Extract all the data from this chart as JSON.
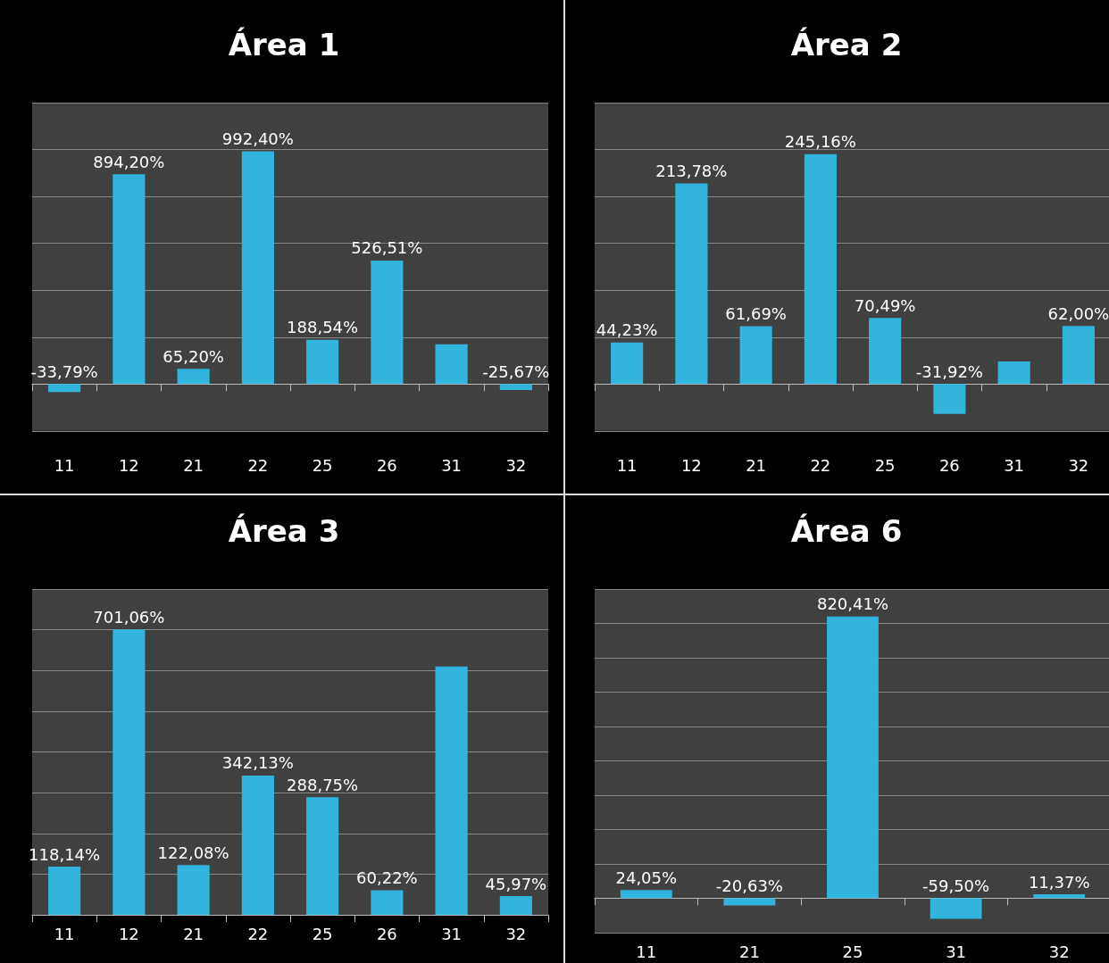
{
  "chart_data": [
    {
      "type": "bar",
      "title": "Área 1",
      "categories": [
        "11",
        "12",
        "21",
        "22",
        "25",
        "26",
        "31",
        "32"
      ],
      "color": "#31b5dc",
      "grid": "y",
      "tick_labels": "x",
      "values": [
        -33.79,
        894.2,
        65.2,
        992.4,
        188.54,
        526.51,
        170,
        -25.67
      ],
      "value_labels": [
        "-33,79%",
        "894,20%",
        "65,20%",
        "992,40%",
        "188,54%",
        "526,51%",
        null,
        "-25,67%"
      ],
      "ylim": [
        -200,
        1200
      ],
      "yticks": [
        {
          "value": -200,
          "label": null
        },
        {
          "value": 0,
          "label": null
        },
        {
          "value": 200,
          "label": null
        },
        {
          "value": 400,
          "label": null
        },
        {
          "value": 600,
          "label": null
        },
        {
          "value": 800,
          "label": null
        },
        {
          "value": 1000,
          "label": null
        },
        {
          "value": 1200,
          "label": null
        }
      ]
    },
    {
      "type": "bar",
      "title": "Área 2",
      "categories": [
        "11",
        "12",
        "21",
        "22",
        "25",
        "26",
        "31",
        "32"
      ],
      "color": "#31b5dc",
      "grid": "y",
      "tick_labels": "x",
      "values": [
        44.23,
        213.78,
        61.69,
        245.16,
        70.49,
        -31.92,
        24,
        62.0
      ],
      "value_labels": [
        "44,23%",
        "213,78%",
        "61,69%",
        "245,16%",
        "70,49%",
        "-31,92%",
        null,
        "62,00%"
      ],
      "ylim": [
        -50,
        300
      ],
      "yticks": [
        {
          "value": -50,
          "label": null
        },
        {
          "value": 0,
          "label": null
        },
        {
          "value": 50,
          "label": null
        },
        {
          "value": 100,
          "label": null
        },
        {
          "value": 150,
          "label": null
        },
        {
          "value": 200,
          "label": null
        },
        {
          "value": 250,
          "label": null
        },
        {
          "value": 300,
          "label": null
        }
      ]
    },
    {
      "type": "bar",
      "title": "Área 3",
      "categories": [
        "11",
        "12",
        "21",
        "22",
        "25",
        "26",
        "31",
        "32"
      ],
      "color": "#31b5dc",
      "grid": "y",
      "tick_labels": "x",
      "values": [
        118.14,
        701.06,
        122.08,
        342.13,
        288.75,
        60.22,
        610,
        45.97
      ],
      "value_labels": [
        "118,14%",
        "701,06%",
        "122,08%",
        "342,13%",
        "288,75%",
        "60,22%",
        null,
        "45,97%"
      ],
      "ylim": [
        0,
        800
      ],
      "yticks": [
        {
          "value": 0,
          "label": null
        },
        {
          "value": 100,
          "label": null
        },
        {
          "value": 200,
          "label": null
        },
        {
          "value": 300,
          "label": null
        },
        {
          "value": 400,
          "label": null
        },
        {
          "value": 500,
          "label": null
        },
        {
          "value": 600,
          "label": null
        },
        {
          "value": 700,
          "label": null
        },
        {
          "value": 800,
          "label": null
        }
      ]
    },
    {
      "type": "bar",
      "title": "Área 6",
      "categories": [
        "11",
        "21",
        "25",
        "31",
        "32"
      ],
      "color": "#31b5dc",
      "grid": "y",
      "tick_labels": "x",
      "values": [
        24.05,
        -20.63,
        820.41,
        -59.5,
        11.37
      ],
      "value_labels": [
        "24,05%",
        "-20,63%",
        "820,41%",
        "-59,50%",
        "11,37%"
      ],
      "ylim": [
        -100,
        900
      ],
      "yticks": [
        {
          "value": -100,
          "label": null
        },
        {
          "value": 0,
          "label": null
        },
        {
          "value": 100,
          "label": null
        },
        {
          "value": 200,
          "label": null
        },
        {
          "value": 300,
          "label": null
        },
        {
          "value": 400,
          "label": null
        },
        {
          "value": 500,
          "label": null
        },
        {
          "value": 600,
          "label": null
        },
        {
          "value": 700,
          "label": null
        },
        {
          "value": 800,
          "label": null
        },
        {
          "value": 900,
          "label": null
        }
      ]
    }
  ]
}
